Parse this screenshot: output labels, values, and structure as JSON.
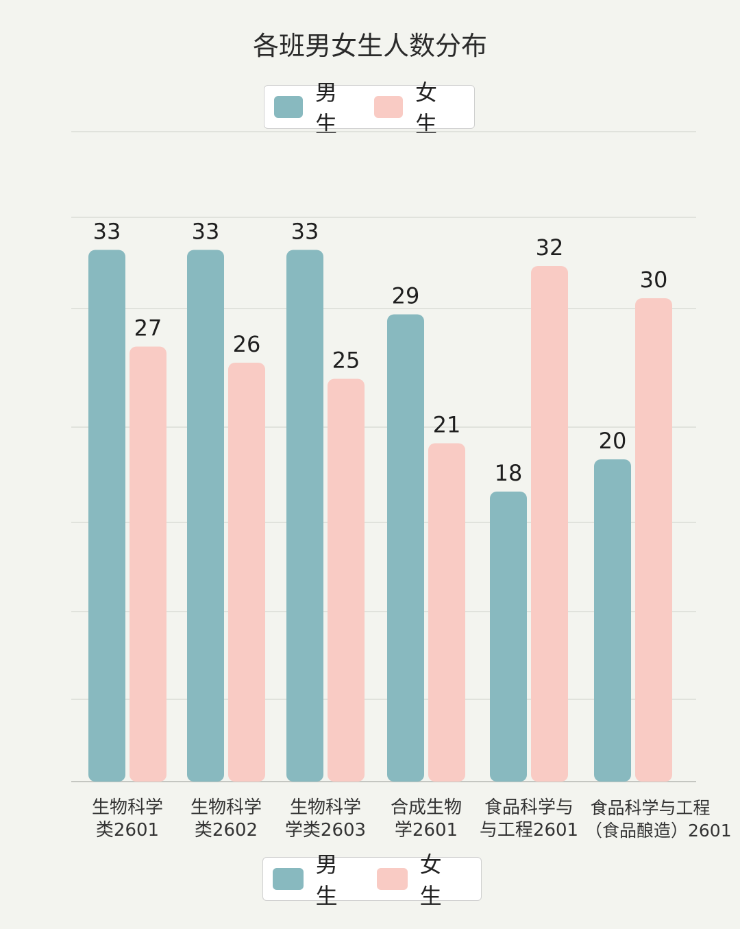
{
  "chart_data": {
    "type": "bar",
    "title": "各班男女生人数分布",
    "categories": [
      [
        "生物科学",
        "类2601"
      ],
      [
        "生物科学",
        "类2602"
      ],
      [
        "生物科学",
        "学类2603"
      ],
      [
        "合成生物",
        "学2601"
      ],
      [
        "食品科学与",
        "与工程2601"
      ],
      [
        "食品科学与工程",
        "（食品酿造）2601"
      ]
    ],
    "series": [
      {
        "name": "男生",
        "values": [
          33,
          33,
          33,
          29,
          18,
          20
        ],
        "color": "#88b9bf"
      },
      {
        "name": "女生",
        "values": [
          27,
          26,
          25,
          21,
          32,
          30
        ],
        "color": "#f9cbc4"
      }
    ],
    "legend": {
      "position": "top and bottom",
      "items": [
        "男生",
        "女生"
      ]
    },
    "xlabel": "",
    "ylabel": "",
    "ylim": [
      0,
      40
    ],
    "grid": true
  }
}
